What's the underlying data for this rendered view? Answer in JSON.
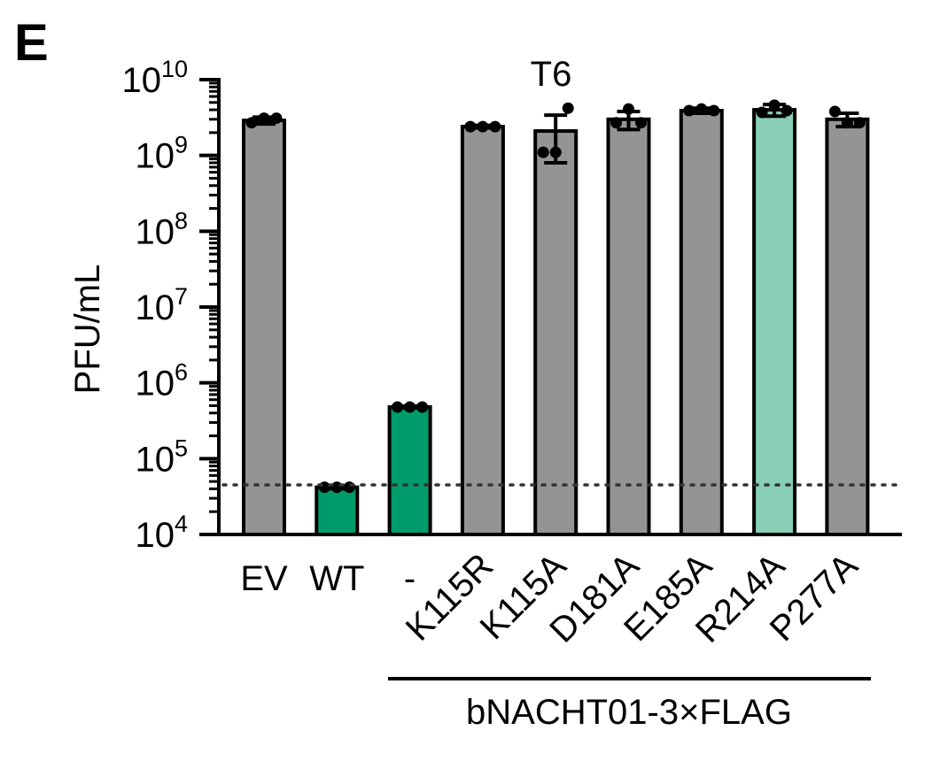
{
  "panel_letter": "E",
  "chart_data": {
    "type": "bar",
    "title": "T6",
    "ylabel": "PFU/mL",
    "xlabel": "",
    "y_scale": "log10",
    "ylim": [
      10000,
      10000000000
    ],
    "y_ticks": [
      {
        "base": "10",
        "exp": "4",
        "value": 10000
      },
      {
        "base": "10",
        "exp": "5",
        "value": 100000
      },
      {
        "base": "10",
        "exp": "6",
        "value": 1000000
      },
      {
        "base": "10",
        "exp": "7",
        "value": 10000000
      },
      {
        "base": "10",
        "exp": "8",
        "value": 100000000
      },
      {
        "base": "10",
        "exp": "9",
        "value": 1000000000
      },
      {
        "base": "10",
        "exp": "10",
        "value": 10000000000
      }
    ],
    "detection_limit": 45000,
    "group_label": "bNACHT01-3×FLAG",
    "categories": [
      "EV",
      "WT",
      "-",
      "K115R",
      "K115A",
      "D181A",
      "E185A",
      "R214A",
      "P277A"
    ],
    "rotated_labels": [
      false,
      false,
      false,
      true,
      true,
      true,
      true,
      true,
      true
    ],
    "values": [
      2900000000,
      42000,
      480000,
      2400000000,
      2100000000,
      3000000000,
      3900000000,
      4000000000,
      3000000000
    ],
    "errors": [
      300000000,
      2000,
      15000,
      100000000,
      1300000000,
      800000000,
      300000000,
      700000000,
      600000000
    ],
    "points": [
      [
        2700000000,
        3100000000,
        3100000000
      ],
      [
        42000,
        42000,
        42000
      ],
      [
        480000,
        480000,
        480000
      ],
      [
        2400000000,
        2400000000,
        2400000000
      ],
      [
        1100000000,
        1100000000,
        4200000000
      ],
      [
        2700000000,
        4100000000,
        2700000000
      ],
      [
        3900000000,
        4100000000,
        3900000000
      ],
      [
        3700000000,
        4600000000,
        3900000000
      ],
      [
        3800000000,
        2700000000,
        2700000000
      ]
    ],
    "bar_colors": [
      "#949494",
      "#009b6b",
      "#009b6b",
      "#949494",
      "#949494",
      "#949494",
      "#949494",
      "#88cfb6",
      "#949494"
    ],
    "grid": false,
    "legend": "none"
  }
}
